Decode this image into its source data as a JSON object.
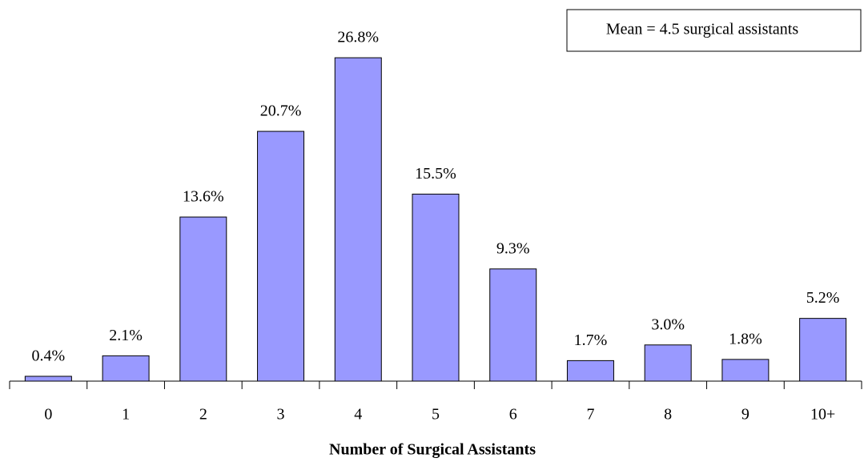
{
  "chart_data": {
    "type": "bar",
    "x_label": "Number of Surgical Assistants",
    "annotation": "Mean = 4.5 surgical assistants",
    "categories": [
      "0",
      "1",
      "2",
      "3",
      "4",
      "5",
      "6",
      "7",
      "8",
      "9",
      "10+"
    ],
    "values": [
      0.4,
      2.1,
      13.6,
      20.7,
      26.8,
      15.5,
      9.3,
      1.7,
      3.0,
      1.8,
      5.2
    ],
    "value_labels": [
      "0.4%",
      "2.1%",
      "13.6%",
      "20.7%",
      "26.8%",
      "15.5%",
      "9.3%",
      "1.7%",
      "3.0%",
      "1.8%",
      "5.2%"
    ],
    "color": "#9999ff"
  }
}
